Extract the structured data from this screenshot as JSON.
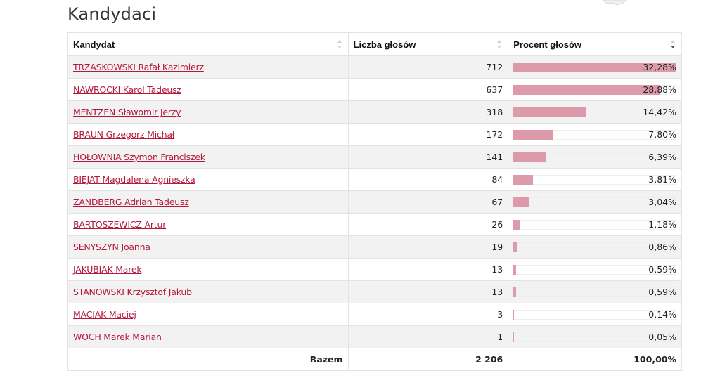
{
  "page": {
    "title": "Kandydaci"
  },
  "table": {
    "headers": {
      "name": "Kandydat",
      "votes": "Liczba głosów",
      "percent": "Procent głosów"
    },
    "rows": [
      {
        "name": "TRZASKOWSKI Rafał Kazimierz",
        "votes": "712",
        "percent": "32,28%",
        "fraction": 0.3228
      },
      {
        "name": "NAWROCKI Karol Tadeusz",
        "votes": "637",
        "percent": "28,88%",
        "fraction": 0.2888
      },
      {
        "name": "MENTZEN Sławomir Jerzy",
        "votes": "318",
        "percent": "14,42%",
        "fraction": 0.1442
      },
      {
        "name": "BRAUN Grzegorz Michał",
        "votes": "172",
        "percent": "7,80%",
        "fraction": 0.078
      },
      {
        "name": "HOŁOWNIA Szymon Franciszek",
        "votes": "141",
        "percent": "6,39%",
        "fraction": 0.0639
      },
      {
        "name": "BIEJAT Magdalena Agnieszka",
        "votes": "84",
        "percent": "3,81%",
        "fraction": 0.0381
      },
      {
        "name": "ZANDBERG Adrian Tadeusz",
        "votes": "67",
        "percent": "3,04%",
        "fraction": 0.0304
      },
      {
        "name": "BARTOSZEWICZ Artur",
        "votes": "26",
        "percent": "1,18%",
        "fraction": 0.0118
      },
      {
        "name": "SENYSZYN Joanna",
        "votes": "19",
        "percent": "0,86%",
        "fraction": 0.0086
      },
      {
        "name": "JAKUBIAK Marek",
        "votes": "13",
        "percent": "0,59%",
        "fraction": 0.0059
      },
      {
        "name": "STANOWSKI Krzysztof Jakub",
        "votes": "13",
        "percent": "0,59%",
        "fraction": 0.0059
      },
      {
        "name": "MACIAK Maciej",
        "votes": "3",
        "percent": "0,14%",
        "fraction": 0.0014
      },
      {
        "name": "WOCH Marek Marian",
        "votes": "1",
        "percent": "0,05%",
        "fraction": 0.0005
      }
    ],
    "footer": {
      "label": "Razem",
      "votes": "2 206",
      "percent": "100,00%"
    }
  },
  "icons": {
    "sort_unsorted": "sort-both-icon",
    "sort_desc": "sort-desc-icon"
  },
  "colors": {
    "link": "#b5183c",
    "bar": "#dd9aaa",
    "row_alt": "#f2f2f2"
  }
}
